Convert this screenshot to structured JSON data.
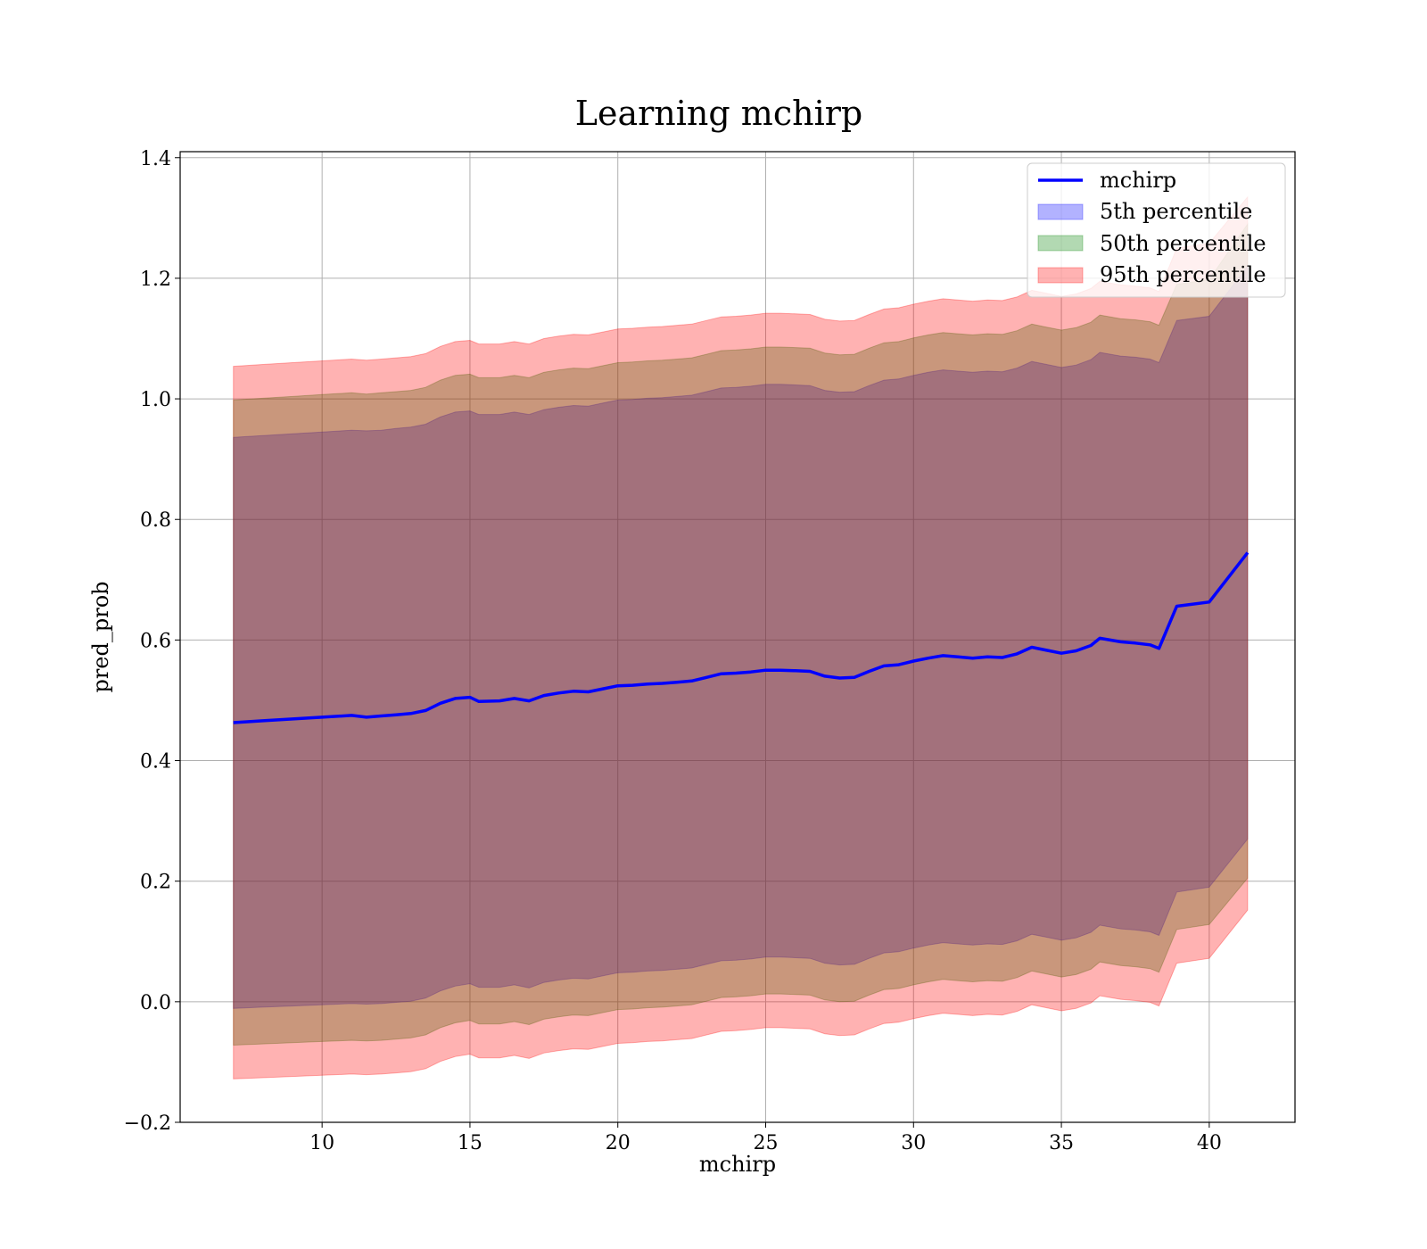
{
  "chart_data": {
    "type": "area",
    "title": "Learning mchirp",
    "xlabel": "mchirp",
    "ylabel": "pred_prob",
    "xlim": [
      5.2,
      42.9
    ],
    "ylim": [
      -0.2,
      1.41
    ],
    "xticks": [
      10,
      15,
      20,
      25,
      30,
      35,
      40
    ],
    "xtick_labels": [
      "10",
      "15",
      "20",
      "25",
      "30",
      "35",
      "40"
    ],
    "yticks": [
      -0.2,
      0.0,
      0.2,
      0.4,
      0.6,
      0.8,
      1.0,
      1.2,
      1.4
    ],
    "ytick_labels": [
      "−0.2",
      "0.0",
      "0.2",
      "0.4",
      "0.6",
      "0.8",
      "1.0",
      "1.2",
      "1.4"
    ],
    "grid": true,
    "legend_position": "top-right",
    "colors": {
      "line": "#0000ff",
      "band_5th": "#0000ff",
      "band_50th": "#008000",
      "band_95th": "#ff0000"
    },
    "band_opacity": 0.3,
    "x": [
      7.0,
      8.0,
      9.0,
      10.0,
      11.0,
      11.5,
      12.0,
      12.5,
      13.0,
      13.5,
      14.0,
      14.5,
      15.0,
      15.3,
      16.0,
      16.5,
      17.0,
      17.5,
      18.0,
      18.5,
      19.0,
      19.5,
      20.0,
      20.5,
      21.0,
      21.5,
      22.0,
      22.5,
      23.0,
      23.5,
      24.0,
      24.5,
      25.0,
      25.5,
      26.0,
      26.5,
      27.0,
      27.5,
      28.0,
      28.5,
      29.0,
      29.5,
      30.0,
      30.5,
      31.0,
      31.5,
      32.0,
      32.5,
      33.0,
      33.5,
      34.0,
      34.5,
      35.0,
      35.5,
      36.0,
      36.3,
      37.0,
      37.5,
      38.0,
      38.3,
      38.9,
      40.0,
      41.3
    ],
    "series": [
      {
        "name": "mchirp",
        "kind": "line",
        "values": [
          0.463,
          0.466,
          0.469,
          0.472,
          0.475,
          0.472,
          0.474,
          0.476,
          0.478,
          0.483,
          0.495,
          0.503,
          0.505,
          0.498,
          0.499,
          0.503,
          0.499,
          0.508,
          0.512,
          0.515,
          0.514,
          0.519,
          0.524,
          0.525,
          0.527,
          0.528,
          0.53,
          0.532,
          0.538,
          0.544,
          0.545,
          0.547,
          0.55,
          0.55,
          0.549,
          0.548,
          0.54,
          0.537,
          0.538,
          0.548,
          0.557,
          0.559,
          0.565,
          0.57,
          0.574,
          0.572,
          0.57,
          0.572,
          0.571,
          0.577,
          0.588,
          0.583,
          0.578,
          0.582,
          0.591,
          0.603,
          0.597,
          0.595,
          0.592,
          0.586,
          0.656,
          0.663,
          0.745
        ]
      },
      {
        "name": "5th percentile",
        "kind": "band",
        "lower": [
          -0.011,
          -0.009,
          -0.007,
          -0.005,
          -0.003,
          -0.004,
          -0.003,
          -0.001,
          0.001,
          0.006,
          0.018,
          0.026,
          0.03,
          0.024,
          0.024,
          0.028,
          0.023,
          0.032,
          0.036,
          0.039,
          0.038,
          0.043,
          0.048,
          0.049,
          0.051,
          0.052,
          0.054,
          0.056,
          0.062,
          0.068,
          0.069,
          0.071,
          0.074,
          0.074,
          0.073,
          0.072,
          0.064,
          0.061,
          0.062,
          0.072,
          0.081,
          0.083,
          0.089,
          0.094,
          0.098,
          0.096,
          0.094,
          0.096,
          0.095,
          0.101,
          0.112,
          0.107,
          0.102,
          0.106,
          0.115,
          0.127,
          0.121,
          0.119,
          0.116,
          0.11,
          0.182,
          0.19,
          0.27
        ],
        "upper": [
          0.936,
          0.939,
          0.942,
          0.945,
          0.948,
          0.947,
          0.948,
          0.951,
          0.953,
          0.958,
          0.97,
          0.978,
          0.98,
          0.974,
          0.974,
          0.978,
          0.974,
          0.982,
          0.986,
          0.989,
          0.988,
          0.993,
          0.998,
          0.999,
          1.001,
          1.002,
          1.004,
          1.006,
          1.012,
          1.018,
          1.019,
          1.021,
          1.024,
          1.024,
          1.023,
          1.022,
          1.014,
          1.011,
          1.012,
          1.022,
          1.031,
          1.033,
          1.039,
          1.044,
          1.048,
          1.046,
          1.044,
          1.046,
          1.045,
          1.051,
          1.062,
          1.057,
          1.052,
          1.056,
          1.065,
          1.077,
          1.071,
          1.069,
          1.066,
          1.06,
          1.13,
          1.137,
          1.22
        ]
      },
      {
        "name": "50th percentile",
        "kind": "band",
        "lower": [
          -0.072,
          -0.07,
          -0.068,
          -0.066,
          -0.064,
          -0.065,
          -0.064,
          -0.062,
          -0.06,
          -0.055,
          -0.043,
          -0.035,
          -0.031,
          -0.037,
          -0.037,
          -0.033,
          -0.038,
          -0.029,
          -0.025,
          -0.022,
          -0.023,
          -0.018,
          -0.013,
          -0.012,
          -0.01,
          -0.009,
          -0.007,
          -0.005,
          0.001,
          0.007,
          0.008,
          0.01,
          0.013,
          0.013,
          0.012,
          0.011,
          0.003,
          0.0,
          0.001,
          0.011,
          0.02,
          0.022,
          0.028,
          0.033,
          0.037,
          0.035,
          0.033,
          0.035,
          0.034,
          0.04,
          0.051,
          0.046,
          0.041,
          0.045,
          0.054,
          0.066,
          0.06,
          0.058,
          0.055,
          0.049,
          0.12,
          0.128,
          0.205
        ],
        "upper": [
          0.998,
          1.001,
          1.004,
          1.007,
          1.01,
          1.008,
          1.01,
          1.012,
          1.014,
          1.019,
          1.031,
          1.039,
          1.041,
          1.035,
          1.035,
          1.039,
          1.035,
          1.044,
          1.048,
          1.051,
          1.05,
          1.055,
          1.06,
          1.061,
          1.063,
          1.064,
          1.066,
          1.068,
          1.074,
          1.08,
          1.081,
          1.083,
          1.086,
          1.086,
          1.085,
          1.084,
          1.076,
          1.073,
          1.074,
          1.084,
          1.093,
          1.095,
          1.101,
          1.106,
          1.11,
          1.108,
          1.106,
          1.108,
          1.107,
          1.113,
          1.124,
          1.119,
          1.114,
          1.118,
          1.127,
          1.139,
          1.133,
          1.131,
          1.128,
          1.122,
          1.19,
          1.198,
          1.29
        ]
      },
      {
        "name": "95th percentile",
        "kind": "band",
        "lower": [
          -0.128,
          -0.126,
          -0.124,
          -0.122,
          -0.12,
          -0.121,
          -0.12,
          -0.118,
          -0.116,
          -0.111,
          -0.099,
          -0.091,
          -0.087,
          -0.093,
          -0.093,
          -0.089,
          -0.094,
          -0.085,
          -0.081,
          -0.078,
          -0.079,
          -0.074,
          -0.069,
          -0.068,
          -0.066,
          -0.065,
          -0.063,
          -0.061,
          -0.055,
          -0.049,
          -0.048,
          -0.046,
          -0.043,
          -0.043,
          -0.044,
          -0.045,
          -0.053,
          -0.056,
          -0.055,
          -0.045,
          -0.036,
          -0.034,
          -0.028,
          -0.023,
          -0.019,
          -0.021,
          -0.023,
          -0.021,
          -0.022,
          -0.016,
          -0.005,
          -0.01,
          -0.015,
          -0.011,
          -0.002,
          0.01,
          0.004,
          0.002,
          -0.001,
          -0.007,
          0.064,
          0.072,
          0.152
        ],
        "upper": [
          1.054,
          1.057,
          1.06,
          1.063,
          1.066,
          1.064,
          1.066,
          1.068,
          1.07,
          1.075,
          1.087,
          1.095,
          1.097,
          1.091,
          1.091,
          1.095,
          1.091,
          1.1,
          1.104,
          1.107,
          1.106,
          1.111,
          1.116,
          1.117,
          1.119,
          1.12,
          1.122,
          1.124,
          1.13,
          1.136,
          1.137,
          1.139,
          1.142,
          1.142,
          1.141,
          1.14,
          1.132,
          1.129,
          1.13,
          1.14,
          1.149,
          1.151,
          1.157,
          1.162,
          1.166,
          1.164,
          1.162,
          1.164,
          1.163,
          1.169,
          1.18,
          1.175,
          1.17,
          1.174,
          1.183,
          1.195,
          1.189,
          1.187,
          1.184,
          1.178,
          1.25,
          1.258,
          1.335
        ]
      }
    ]
  }
}
